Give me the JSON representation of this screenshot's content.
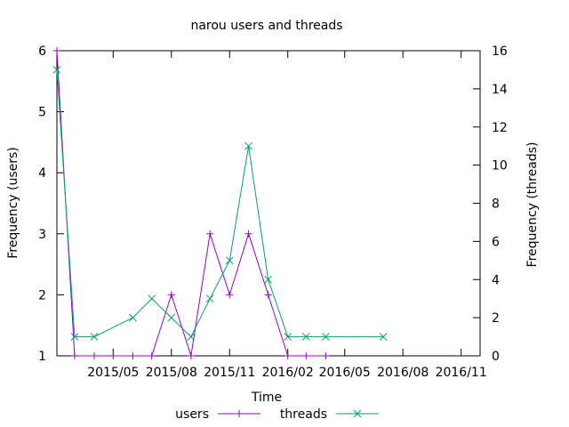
{
  "chart_data": {
    "type": "line",
    "title": "narou users and threads",
    "xlabel": "Time",
    "ylabel_left": "Frequency (users)",
    "ylabel_right": "Frequency (threads)",
    "x_ticks": [
      "2015/05",
      "2015/08",
      "2015/11",
      "2016/02",
      "2016/05",
      "2016/08",
      "2016/11"
    ],
    "x_tick_dates": [
      "2015-05-01",
      "2015-08-01",
      "2015-11-01",
      "2016-02-01",
      "2016-05-01",
      "2016-08-01",
      "2016-11-01"
    ],
    "x_range": [
      "2015-02-01",
      "2016-12-01"
    ],
    "y_left_range": [
      1,
      6
    ],
    "y_left_ticks": [
      "1",
      "2",
      "3",
      "4",
      "5",
      "6"
    ],
    "y_right_range": [
      0,
      16
    ],
    "y_right_ticks": [
      "0",
      "2",
      "4",
      "6",
      "8",
      "10",
      "12",
      "14",
      "16"
    ],
    "legend_position": "bottom",
    "grid": false,
    "series": [
      {
        "name": "users",
        "axis": "left",
        "color": "#9400d3",
        "marker": "plus",
        "x": [
          "2015-02-01",
          "2015-03-01",
          "2015-04-01",
          "2015-05-01",
          "2015-06-01",
          "2015-07-01",
          "2015-08-01",
          "2015-09-01",
          "2015-10-01",
          "2015-11-01",
          "2015-12-01",
          "2016-01-01",
          "2016-02-01",
          "2016-03-01",
          "2016-04-01"
        ],
        "values": [
          6,
          1,
          1,
          1,
          1,
          1,
          2,
          1,
          3,
          2,
          3,
          2,
          1,
          1,
          1
        ]
      },
      {
        "name": "threads",
        "axis": "right",
        "color": "#009e73",
        "marker": "cross",
        "x": [
          "2015-02-01",
          "2015-03-01",
          "2015-04-01",
          "2015-06-01",
          "2015-07-01",
          "2015-08-01",
          "2015-09-01",
          "2015-10-01",
          "2015-11-01",
          "2015-12-01",
          "2016-01-01",
          "2016-02-01",
          "2016-03-01",
          "2016-04-01",
          "2016-07-01"
        ],
        "values": [
          15,
          1,
          1,
          2,
          3,
          2,
          1,
          3,
          5,
          11,
          4,
          1,
          1,
          1,
          1
        ]
      }
    ]
  }
}
